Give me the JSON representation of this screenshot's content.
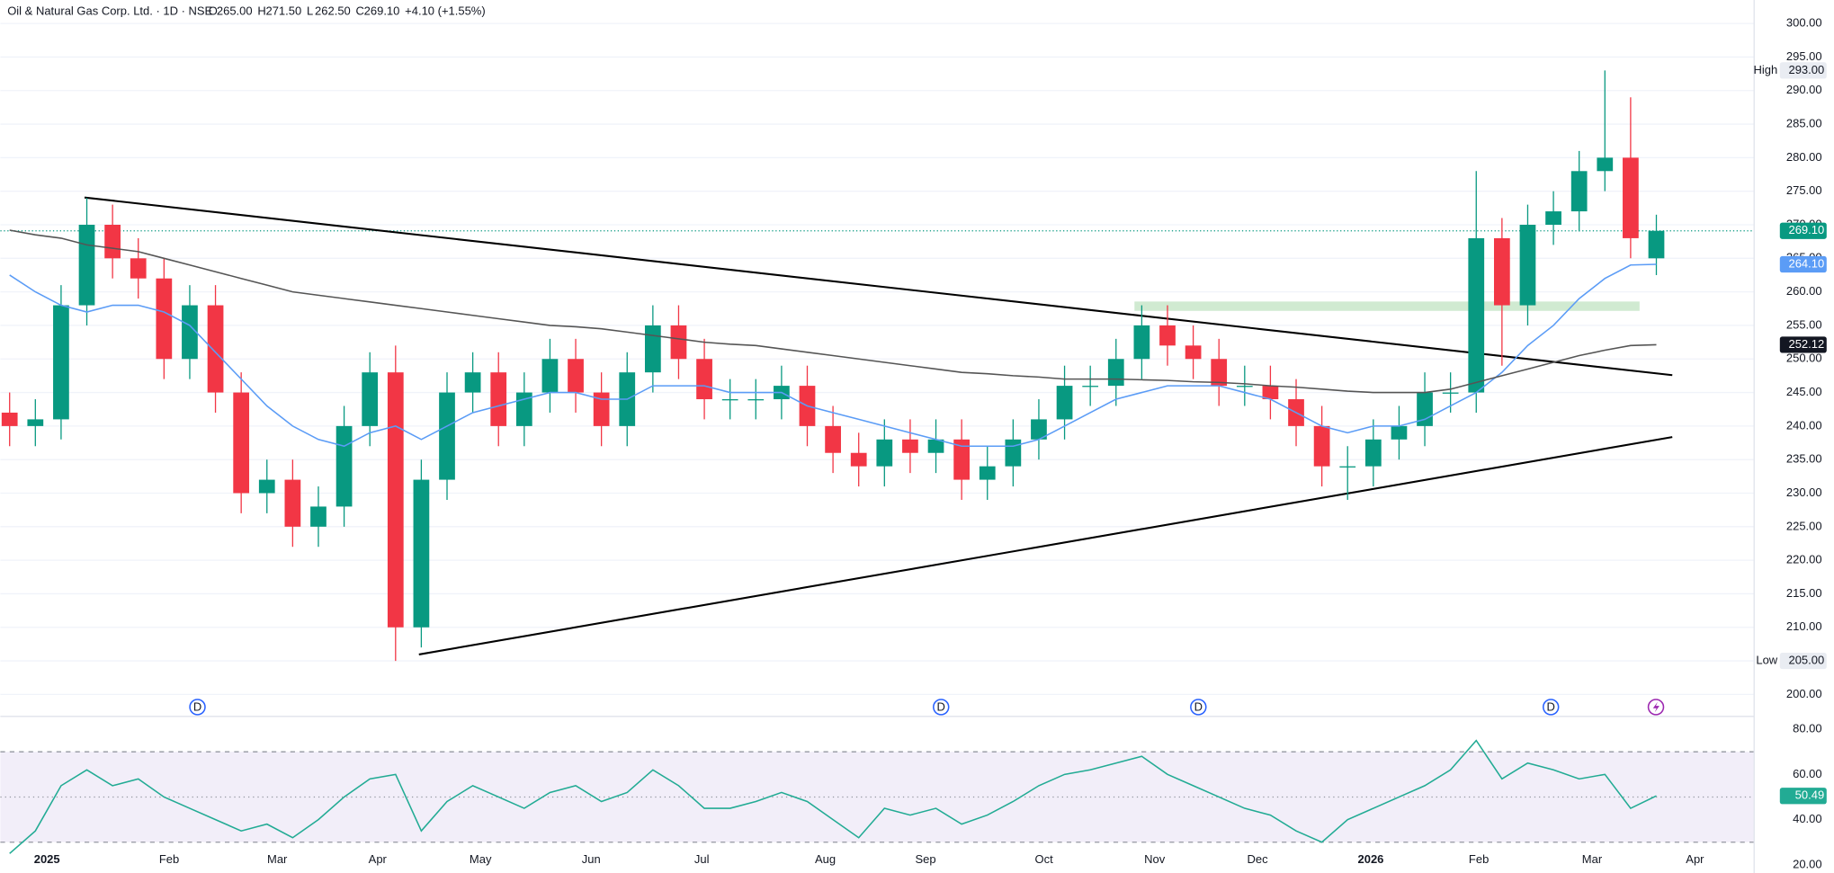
{
  "chart_data": [
    {
      "type": "candlestick",
      "title": "Oil & Natural Gas Corp. Ltd. · 1D · NSE",
      "ohlc_legend": [
        {
          "key": "O",
          "value": "265.00"
        },
        {
          "key": "H",
          "value": "271.50"
        },
        {
          "key": "L",
          "value": "262.50"
        },
        {
          "key": "C",
          "value": "269.10"
        }
      ],
      "change": "+4.10 (+1.55%)",
      "up_color": "#089981",
      "down_color": "#f23645",
      "open": [
        242,
        240,
        241,
        258,
        270,
        265,
        262,
        250,
        258,
        245,
        230,
        232,
        225,
        228,
        240,
        248,
        210,
        232,
        245,
        248,
        240,
        245,
        250,
        245,
        240,
        248,
        255,
        250,
        244,
        244,
        244,
        246,
        240,
        236,
        234,
        238,
        236,
        238,
        232,
        234,
        238,
        241,
        246,
        246,
        250,
        255,
        252,
        250,
        246,
        246,
        244,
        240,
        234,
        234,
        238,
        240,
        245,
        245,
        268,
        258,
        270,
        272,
        278,
        280,
        265
      ],
      "high": [
        245,
        244,
        261,
        274,
        273,
        268,
        265,
        261,
        261,
        248,
        235,
        235,
        231,
        243,
        251,
        252,
        235,
        248,
        251,
        251,
        248,
        253,
        253,
        248,
        251,
        258,
        258,
        253,
        247,
        247,
        249,
        249,
        243,
        239,
        241,
        241,
        241,
        241,
        237,
        241,
        244,
        249,
        249,
        253,
        258,
        258,
        255,
        253,
        249,
        249,
        247,
        243,
        237,
        241,
        243,
        248,
        248,
        278,
        271,
        273,
        275,
        281,
        293,
        289,
        271.5
      ],
      "low": [
        237,
        237,
        238,
        255,
        262,
        259,
        247,
        247,
        242,
        227,
        227,
        222,
        222,
        225,
        237,
        205,
        207,
        229,
        242,
        237,
        237,
        242,
        242,
        237,
        237,
        245,
        247,
        241,
        241,
        241,
        241,
        237,
        233,
        231,
        231,
        233,
        233,
        229,
        229,
        231,
        235,
        238,
        243,
        243,
        247,
        249,
        247,
        243,
        243,
        241,
        237,
        231,
        229,
        231,
        235,
        237,
        242,
        242,
        249,
        255,
        267,
        269,
        275,
        265,
        262.5
      ],
      "close": [
        240,
        241,
        258,
        270,
        265,
        262,
        250,
        258,
        245,
        230,
        232,
        225,
        228,
        240,
        248,
        210,
        232,
        245,
        248,
        240,
        245,
        250,
        245,
        240,
        248,
        255,
        250,
        244,
        244,
        244,
        246,
        240,
        236,
        234,
        238,
        236,
        238,
        232,
        234,
        238,
        241,
        246,
        246,
        250,
        255,
        252,
        250,
        246,
        246,
        244,
        240,
        234,
        234,
        238,
        240,
        245,
        245,
        268,
        258,
        270,
        272,
        278,
        280,
        268,
        269.1
      ],
      "series": [
        {
          "color": "#5b9cf6",
          "values": [
            262.5,
            260,
            258,
            257,
            258,
            258,
            257,
            255,
            251,
            247,
            243,
            240,
            238,
            237,
            239,
            240,
            238,
            240,
            242,
            243,
            244,
            245,
            245,
            244,
            244,
            246,
            246,
            246,
            245,
            245,
            245,
            243,
            242,
            241,
            240,
            239,
            238,
            237,
            237,
            237,
            238,
            240,
            242,
            244,
            245,
            246,
            246,
            246,
            245,
            244,
            242,
            240,
            239,
            240,
            240,
            241,
            243,
            245,
            248,
            252,
            255,
            259,
            262,
            264,
            264.1
          ]
        },
        {
          "color": "#555555",
          "values": [
            269.2,
            268.5,
            268,
            267,
            266.5,
            266,
            265,
            264,
            263,
            262,
            261,
            260,
            259.5,
            259,
            258.5,
            258,
            257.5,
            257,
            256.5,
            256,
            255.5,
            255,
            254.8,
            254.5,
            254,
            253.5,
            253,
            252.5,
            252.2,
            252,
            251.5,
            251,
            250.5,
            250,
            249.5,
            249,
            248.5,
            248,
            247.8,
            247.5,
            247.3,
            247,
            247,
            247,
            246.9,
            246.8,
            246.6,
            246.5,
            246.3,
            246,
            245.8,
            245.5,
            245.2,
            245,
            245,
            245,
            245.5,
            246.5,
            247.5,
            248.5,
            249.5,
            250.5,
            251.3,
            252,
            252.12
          ]
        }
      ],
      "xlim": [
        -0.36,
        67.8
      ],
      "ylim": [
        196.9,
        303.5
      ],
      "yticks": [
        {
          "value": 200,
          "label": "200.00"
        },
        {
          "value": 205,
          "label": "205.00"
        },
        {
          "value": 210,
          "label": "210.00"
        },
        {
          "value": 215,
          "label": "215.00"
        },
        {
          "value": 220,
          "label": "220.00"
        },
        {
          "value": 225,
          "label": "225.00"
        },
        {
          "value": 230,
          "label": "230.00"
        },
        {
          "value": 235,
          "label": "235.00"
        },
        {
          "value": 240,
          "label": "240.00"
        },
        {
          "value": 245,
          "label": "245.00"
        },
        {
          "value": 250,
          "label": "250.00"
        },
        {
          "value": 255,
          "label": "255.00"
        },
        {
          "value": 260,
          "label": "260.00"
        },
        {
          "value": 265,
          "label": "265.00"
        },
        {
          "value": 270,
          "label": "270.00"
        },
        {
          "value": 275,
          "label": "275.00"
        },
        {
          "value": 280,
          "label": "280.00"
        },
        {
          "value": 285,
          "label": "285.00"
        },
        {
          "value": 290,
          "label": "290.00"
        },
        {
          "value": 295,
          "label": "295.00"
        },
        {
          "value": 300,
          "label": "300.00"
        }
      ],
      "markers": [
        {
          "text": "High",
          "value": 293,
          "label": "293.00"
        },
        {
          "text": "Low",
          "value": 205,
          "label": "205.00"
        }
      ],
      "price_tags": [
        {
          "value": 269.1,
          "label": "269.10",
          "color": "#089981"
        },
        {
          "value": 264.1,
          "label": "264.10",
          "color": "#5b9cf6"
        },
        {
          "value": 252.12,
          "label": "252.12",
          "color": "#131722"
        }
      ],
      "events": [
        {
          "x": 7.3,
          "label": "D"
        },
        {
          "x": 36.2,
          "label": "D"
        },
        {
          "x": 46.2,
          "label": "D"
        },
        {
          "x": 59.9,
          "label": "D"
        }
      ]
    },
    {
      "type": "line",
      "series": [
        {
          "color": "#22ab94",
          "values": [
            25,
            35,
            55,
            62,
            55,
            58,
            50,
            45,
            40,
            35,
            38,
            32,
            40,
            50,
            58,
            60,
            35,
            48,
            55,
            50,
            45,
            52,
            55,
            48,
            52,
            62,
            55,
            45,
            45,
            48,
            52,
            48,
            40,
            32,
            45,
            42,
            45,
            38,
            42,
            48,
            55,
            60,
            62,
            65,
            68,
            60,
            55,
            50,
            45,
            42,
            35,
            30,
            40,
            45,
            50,
            55,
            62,
            75,
            58,
            65,
            62,
            58,
            60,
            45,
            50.49
          ]
        }
      ],
      "xlim": [
        -0.36,
        67.8
      ],
      "ylim": [
        16.9,
        84.1
      ],
      "bands": [
        30,
        70
      ],
      "midline": 50,
      "yticks": [
        {
          "value": 20,
          "label": "20.00"
        },
        {
          "value": 40,
          "label": "40.00"
        },
        {
          "value": 60,
          "label": "60.00"
        },
        {
          "value": 80,
          "label": "80.00"
        }
      ],
      "price_tags": [
        {
          "value": 50.49,
          "label": "50.49",
          "color": "#22ab94"
        }
      ],
      "xticks": [
        {
          "value": 1.45,
          "label": "2025"
        },
        {
          "value": 6.2,
          "label": "Feb"
        },
        {
          "value": 10.4,
          "label": "Mar"
        },
        {
          "value": 14.3,
          "label": "Apr"
        },
        {
          "value": 18.3,
          "label": "May"
        },
        {
          "value": 22.6,
          "label": "Jun"
        },
        {
          "value": 26.9,
          "label": "Jul"
        },
        {
          "value": 31.7,
          "label": "Aug"
        },
        {
          "value": 35.6,
          "label": "Sep"
        },
        {
          "value": 40.2,
          "label": "Oct"
        },
        {
          "value": 44.5,
          "label": "Nov"
        },
        {
          "value": 48.5,
          "label": "Dec"
        },
        {
          "value": 52.9,
          "label": "2026"
        },
        {
          "value": 57.1,
          "label": "Feb"
        },
        {
          "value": 61.5,
          "label": "Mar"
        },
        {
          "value": 65.5,
          "label": "Apr"
        }
      ]
    }
  ]
}
